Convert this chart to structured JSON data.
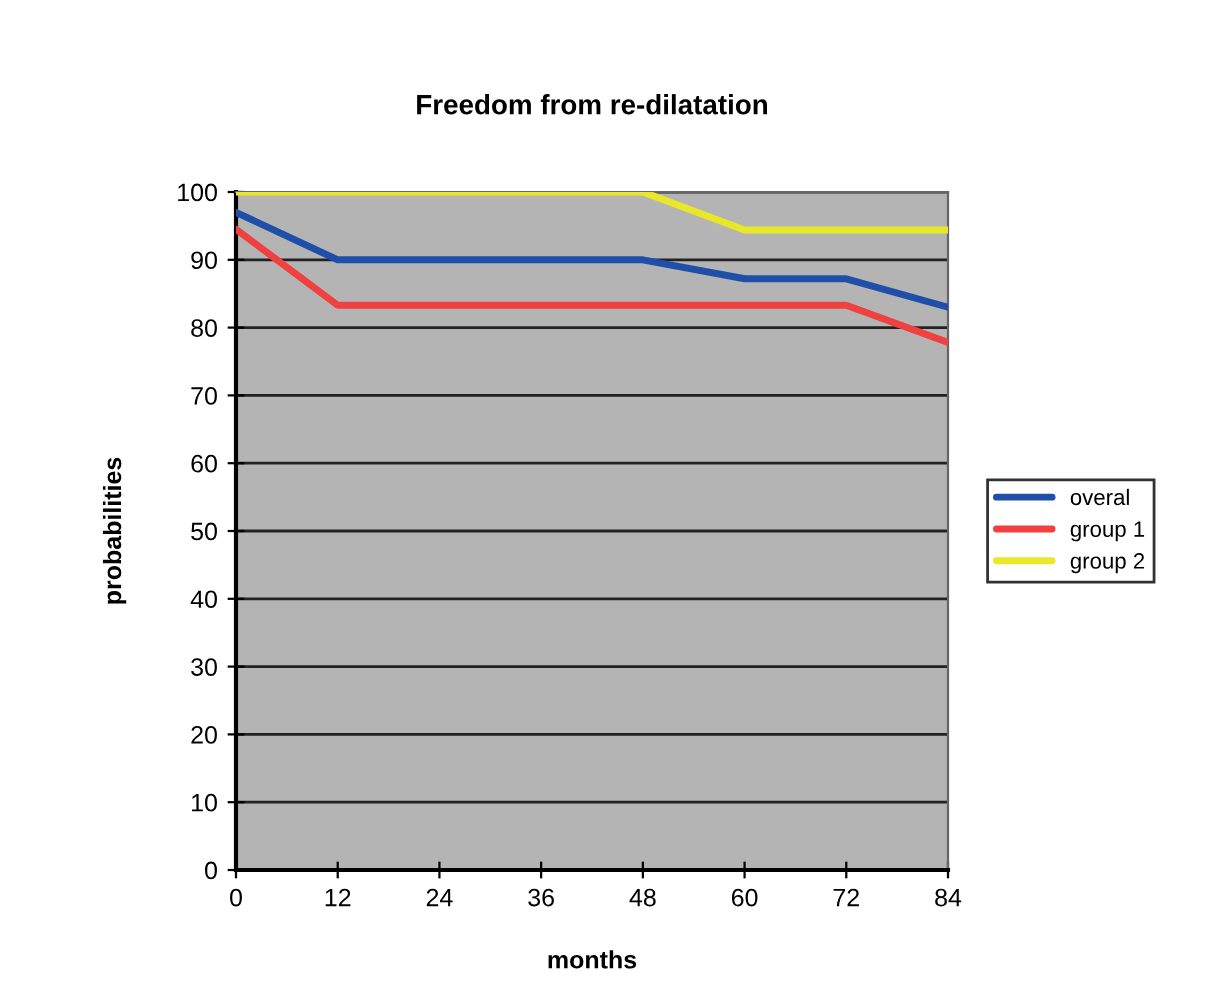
{
  "chart_data": {
    "type": "line",
    "title": "Freedom from re-dilatation",
    "xlabel": "months",
    "ylabel": "probabilities",
    "x": [
      0,
      12,
      24,
      36,
      48,
      60,
      72,
      84
    ],
    "series": [
      {
        "name": "overal",
        "color": "#1f4fa8",
        "values": [
          97,
          90,
          90,
          90,
          90,
          87.2,
          87.2,
          83
        ]
      },
      {
        "name": "group 1",
        "color": "#f04040",
        "values": [
          94.5,
          83.3,
          83.3,
          83.3,
          83.3,
          83.3,
          83.3,
          77.8
        ]
      },
      {
        "name": "group 2",
        "color": "#e8e828",
        "values": [
          100,
          100,
          100,
          100,
          100,
          94.4,
          94.4,
          94.4
        ]
      }
    ],
    "xlim": [
      0,
      84
    ],
    "xticks": [
      0,
      12,
      24,
      36,
      48,
      60,
      72,
      84
    ],
    "ylim": [
      0,
      100
    ],
    "yticks": [
      0,
      10,
      20,
      30,
      40,
      50,
      60,
      70,
      80,
      90,
      100
    ],
    "grid": "y",
    "legend": "right",
    "marker": "none",
    "line_style": "solid"
  }
}
